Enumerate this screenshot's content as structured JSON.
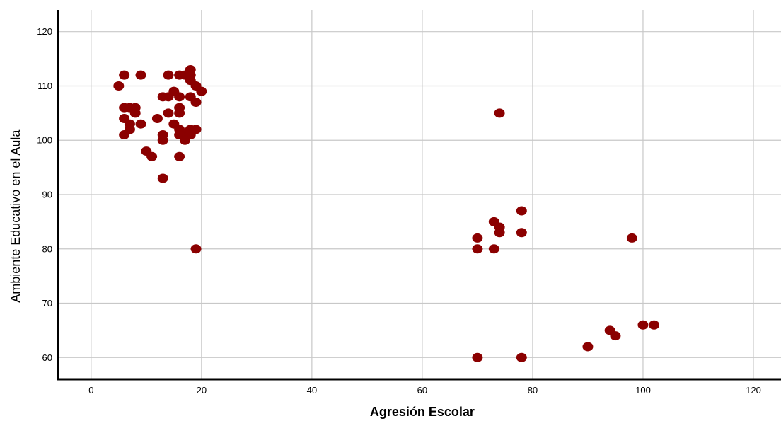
{
  "chart_data": {
    "type": "scatter",
    "title": "",
    "xlabel": "Agresión Escolar",
    "ylabel": "Ambiente Educativo en el Aula",
    "xlim": [
      -6,
      125
    ],
    "ylim": [
      56,
      124
    ],
    "xticks": [
      0,
      20,
      40,
      60,
      80,
      100,
      120
    ],
    "yticks": [
      60,
      70,
      80,
      90,
      100,
      110,
      120
    ],
    "grid": true,
    "point_color": "#8b0000",
    "points": [
      [
        5,
        110
      ],
      [
        6,
        112
      ],
      [
        9,
        112
      ],
      [
        14,
        112
      ],
      [
        16,
        112
      ],
      [
        17,
        112
      ],
      [
        18,
        113
      ],
      [
        18,
        112
      ],
      [
        18,
        111
      ],
      [
        19,
        110
      ],
      [
        20,
        109
      ],
      [
        19,
        107
      ],
      [
        18,
        108
      ],
      [
        15,
        109
      ],
      [
        13,
        108
      ],
      [
        14,
        108
      ],
      [
        16,
        108
      ],
      [
        6,
        106
      ],
      [
        7,
        106
      ],
      [
        8,
        106
      ],
      [
        8,
        105
      ],
      [
        16,
        106
      ],
      [
        14,
        105
      ],
      [
        16,
        105
      ],
      [
        6,
        104
      ],
      [
        7,
        103
      ],
      [
        9,
        103
      ],
      [
        12,
        104
      ],
      [
        15,
        103
      ],
      [
        7,
        102
      ],
      [
        6,
        101
      ],
      [
        13,
        101
      ],
      [
        13,
        100
      ],
      [
        16,
        102
      ],
      [
        17,
        101
      ],
      [
        16,
        101
      ],
      [
        18,
        102
      ],
      [
        18,
        101
      ],
      [
        19,
        102
      ],
      [
        17,
        100
      ],
      [
        10,
        98
      ],
      [
        11,
        97
      ],
      [
        16,
        97
      ],
      [
        13,
        93
      ],
      [
        19,
        80
      ],
      [
        74,
        105
      ],
      [
        78,
        87
      ],
      [
        73,
        85
      ],
      [
        74,
        84
      ],
      [
        74,
        83
      ],
      [
        78,
        83
      ],
      [
        70,
        82
      ],
      [
        98,
        82
      ],
      [
        70,
        80
      ],
      [
        73,
        80
      ],
      [
        100,
        66
      ],
      [
        102,
        66
      ],
      [
        94,
        65
      ],
      [
        95,
        64
      ],
      [
        90,
        62
      ],
      [
        70,
        60
      ],
      [
        78,
        60
      ]
    ]
  }
}
